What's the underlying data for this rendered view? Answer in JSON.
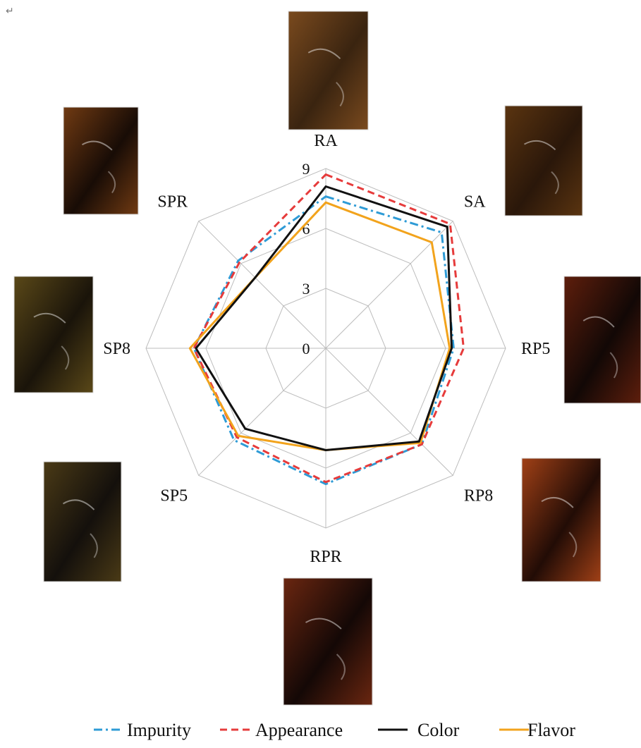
{
  "chart_data": {
    "type": "radar",
    "categories": [
      "RA",
      "SA",
      "RP5",
      "RP8",
      "RPR",
      "SP5",
      "SP8",
      "SPR"
    ],
    "rlim": [
      0,
      9
    ],
    "ticks": [
      "0",
      "3",
      "6",
      "9"
    ],
    "grid": true,
    "legend_position": "bottom",
    "series": [
      {
        "name": "Impurity",
        "values": [
          7.6,
          8.2,
          6.4,
          6.8,
          6.8,
          6.5,
          6.6,
          6.2
        ],
        "color": "#2e9bd6",
        "dash": "dashdot"
      },
      {
        "name": "Appearance",
        "values": [
          8.7,
          8.8,
          6.9,
          6.8,
          6.7,
          6.3,
          6.6,
          6.1
        ],
        "color": "#e63b3b",
        "dash": "dash"
      },
      {
        "name": "Color",
        "values": [
          8.1,
          8.6,
          6.3,
          6.6,
          5.1,
          5.7,
          6.5,
          5.0
        ],
        "color": "#111111",
        "dash": "solid"
      },
      {
        "name": "Flavor",
        "values": [
          7.3,
          7.5,
          6.2,
          6.7,
          5.1,
          6.2,
          6.8,
          5.0
        ],
        "color": "#f2a31c",
        "dash": "solid"
      }
    ]
  },
  "page_mark": "↵"
}
